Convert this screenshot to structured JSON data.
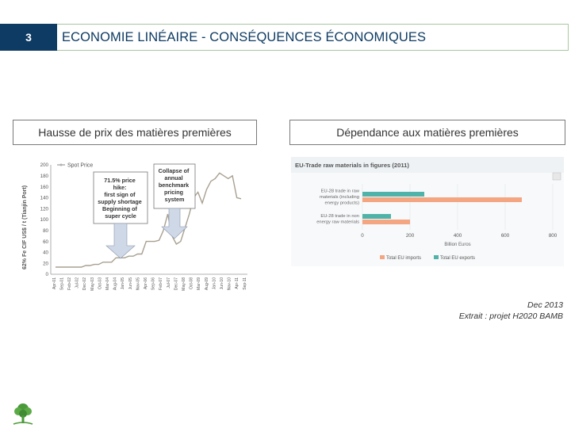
{
  "slide": {
    "number": "3",
    "title": "ECONOMIE LINÉAIRE - CONSÉQUENCES ÉCONOMIQUES"
  },
  "left_panel": {
    "heading": "Hausse de prix des matières premières",
    "chart_data": {
      "type": "line",
      "title": "",
      "legend": [
        "Spot Price"
      ],
      "ylabel": "62% Fe CIF US$ / t (Tianjin Port)",
      "ylim": [
        0,
        200
      ],
      "yticks": [
        "200",
        "180",
        "160",
        "140",
        "120",
        "100",
        "80",
        "60",
        "40",
        "20",
        "0"
      ],
      "xticks": [
        "Apr-01",
        "Sep-01",
        "Feb-02",
        "Jul-02",
        "Dec-02",
        "May-03",
        "Oct-03",
        "Mar-04",
        "Aug-04",
        "Jan-05",
        "Jun-05",
        "Nov-05",
        "Apr-06",
        "Sep-06",
        "Feb-07",
        "Jul-07",
        "Dec-07",
        "May-08",
        "Oct-08",
        "Mar-09",
        "Aug-09",
        "Jan-10",
        "Jun-10",
        "Nov-10",
        "Apr-11",
        "Sep-11"
      ],
      "series": [
        {
          "name": "Spot Price",
          "values": [
            13,
            13,
            13,
            13,
            13,
            13,
            13,
            16,
            16,
            18,
            18,
            22,
            22,
            22,
            30,
            30,
            30,
            33,
            33,
            37,
            37,
            60,
            60,
            60,
            62,
            80,
            110,
            70,
            55,
            60,
            85,
            110,
            140,
            150,
            130,
            155,
            170,
            175,
            185,
            180,
            175,
            180,
            140,
            138
          ]
        }
      ],
      "annotations": [
        "71.5% price hike: first sign of supply shortage Beginning of super cycle",
        "Collapse of annual benchmark pricing system"
      ]
    }
  },
  "right_panel": {
    "heading": "Dépendance aux matières premières",
    "chart_data": {
      "type": "bar",
      "title": "EU-Trade raw materials in figures (2011)",
      "categories": [
        "EU-28 trade in raw materials (including energy products)",
        "EU-28 trade in non energy raw materials"
      ],
      "category_lines": [
        [
          "EU-28 trade in raw",
          "materials (including",
          "energy products)"
        ],
        [
          "EU-28 trade in non",
          "energy raw materials"
        ]
      ],
      "series": [
        {
          "name": "Total EU imports",
          "values": [
            670,
            200
          ],
          "color": "#f4a582"
        },
        {
          "name": "Total EU exports",
          "values": [
            260,
            120
          ],
          "color": "#4fb3a9"
        }
      ],
      "xlabel": "Billion Euros",
      "xlim": [
        0,
        800
      ],
      "xticks": [
        "0",
        "200",
        "400",
        "600",
        "800"
      ]
    }
  },
  "footer": {
    "date": "Dec 2013",
    "source": "Extrait : projet H2020 BAMB"
  },
  "colors": {
    "accent_navy": "#0e3b63",
    "title_border": "#a8c8a0",
    "logo_green": "#4a9a3a"
  }
}
